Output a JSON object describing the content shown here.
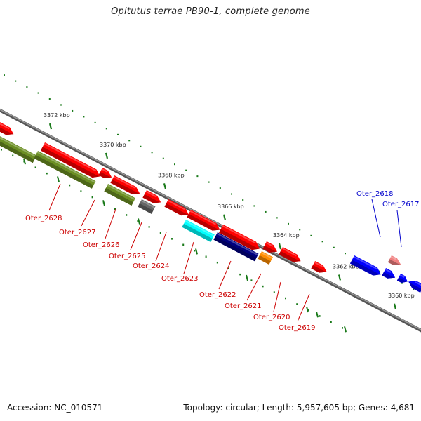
{
  "title": "Opitutus terrae PB90-1, complete genome",
  "footer": {
    "accession": "Accession: NC_010571",
    "summary": "Topology: circular; Length: 5,957,605 bp; Genes: 4,681"
  },
  "colors": {
    "backbone": "#7a7a7a",
    "tick": "#1a7a1a",
    "red_gene": "#ff0000",
    "red_label": "#cc0000",
    "blue_gene": "#0000ff",
    "blue_label": "#0000cc",
    "olive_gene": "#6b8e23",
    "gray_gene": "#666666",
    "cyan_gene": "#00ffff",
    "navy_gene": "#000080",
    "orange_gene": "#ff8c00",
    "pink_gene": "#f08080"
  },
  "scale": {
    "unit": "kbp",
    "labels": [
      "3372 kbp",
      "3370 kbp",
      "3368 kbp",
      "3366 kbp",
      "3364 kbp",
      "3362 kbp",
      "3360 kbp"
    ]
  },
  "gene_labels": [
    {
      "name": "Oter_2628",
      "color": "red"
    },
    {
      "name": "Oter_2627",
      "color": "red"
    },
    {
      "name": "Oter_2626",
      "color": "red"
    },
    {
      "name": "Oter_2625",
      "color": "red"
    },
    {
      "name": "Oter_2624",
      "color": "red"
    },
    {
      "name": "Oter_2623",
      "color": "red"
    },
    {
      "name": "Oter_2622",
      "color": "red"
    },
    {
      "name": "Oter_2621",
      "color": "red"
    },
    {
      "name": "Oter_2620",
      "color": "red"
    },
    {
      "name": "Oter_2619",
      "color": "red"
    },
    {
      "name": "Oter_2618",
      "color": "blue"
    },
    {
      "name": "Oter_2617",
      "color": "blue"
    }
  ]
}
